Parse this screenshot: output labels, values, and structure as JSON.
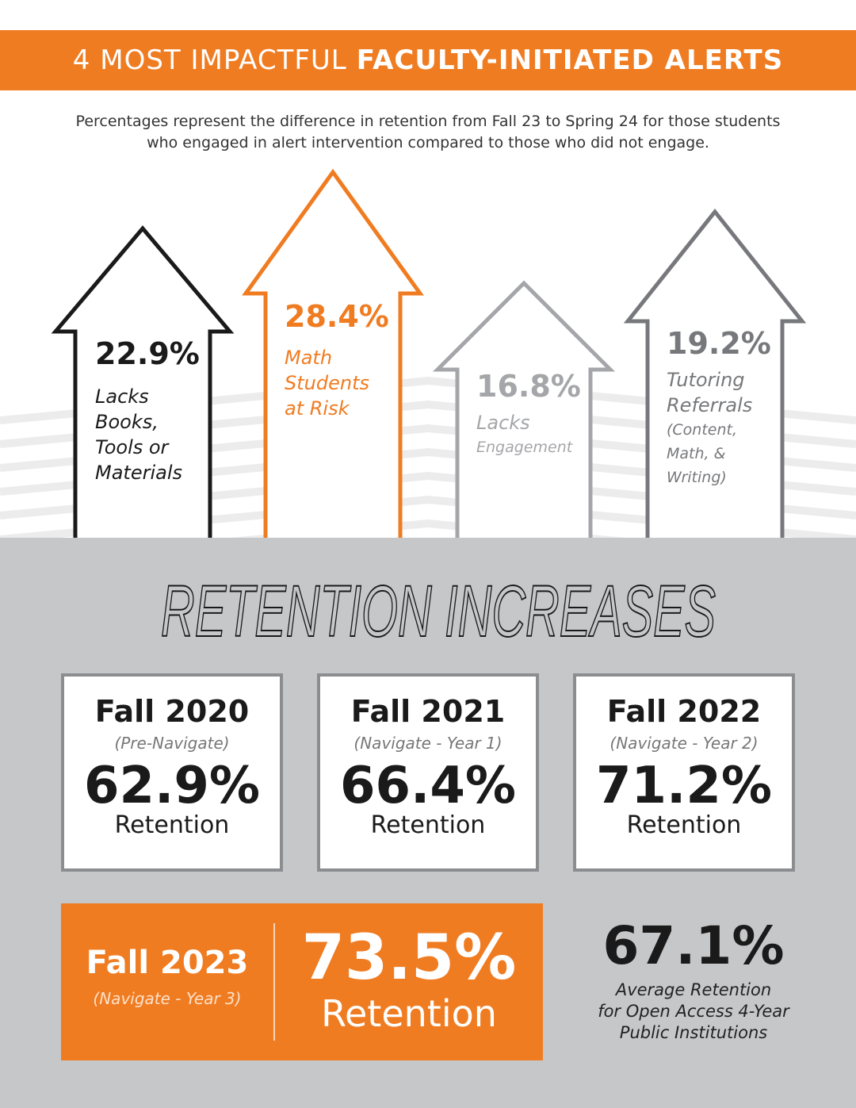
{
  "banner": {
    "title_light": "4 MOST IMPACTFUL",
    "title_bold": "FACULTY-INITIATED ALERTS"
  },
  "subtitle": {
    "line1": "Percentages represent the difference in retention from Fall 23 to Spring 24 for those students",
    "line2": "who engaged in alert intervention compared to those who did not engage."
  },
  "colors": {
    "orange": "#f07c22",
    "black": "#1a1a1a",
    "light_gray": "#a5a6a9",
    "mid_gray": "#77787b",
    "section_gray": "#c6c7c9"
  },
  "alerts": [
    {
      "percent": "22.9%",
      "label_lines": [
        "Lacks",
        "Books,",
        "Tools or",
        "Materials"
      ]
    },
    {
      "percent": "28.4%",
      "label_lines": [
        "Math",
        "Students",
        "at Risk"
      ]
    },
    {
      "percent": "16.8%",
      "label_lines": [
        "Lacks",
        "Engagement"
      ]
    },
    {
      "percent": "19.2%",
      "label_lines": [
        "Tutoring",
        "Referrals",
        "(Content,",
        "Math, &",
        "Writing)"
      ]
    }
  ],
  "retention": {
    "title": "RETENTION INCREASES",
    "cards": [
      {
        "year": "Fall 2020",
        "subtitle": "(Pre-Navigate)",
        "value": "62.9%",
        "label": "Retention"
      },
      {
        "year": "Fall 2021",
        "subtitle": "(Navigate - Year 1)",
        "value": "66.4%",
        "label": "Retention"
      },
      {
        "year": "Fall 2022",
        "subtitle": "(Navigate - Year 2)",
        "value": "71.2%",
        "label": "Retention"
      }
    ],
    "highlight": {
      "year": "Fall 2023",
      "subtitle": "(Navigate - Year 3)",
      "value": "73.5%",
      "label": "Retention"
    },
    "average": {
      "value": "67.1%",
      "lines": [
        "Average Retention",
        "for Open Access 4-Year",
        "Public Institutions"
      ]
    }
  }
}
